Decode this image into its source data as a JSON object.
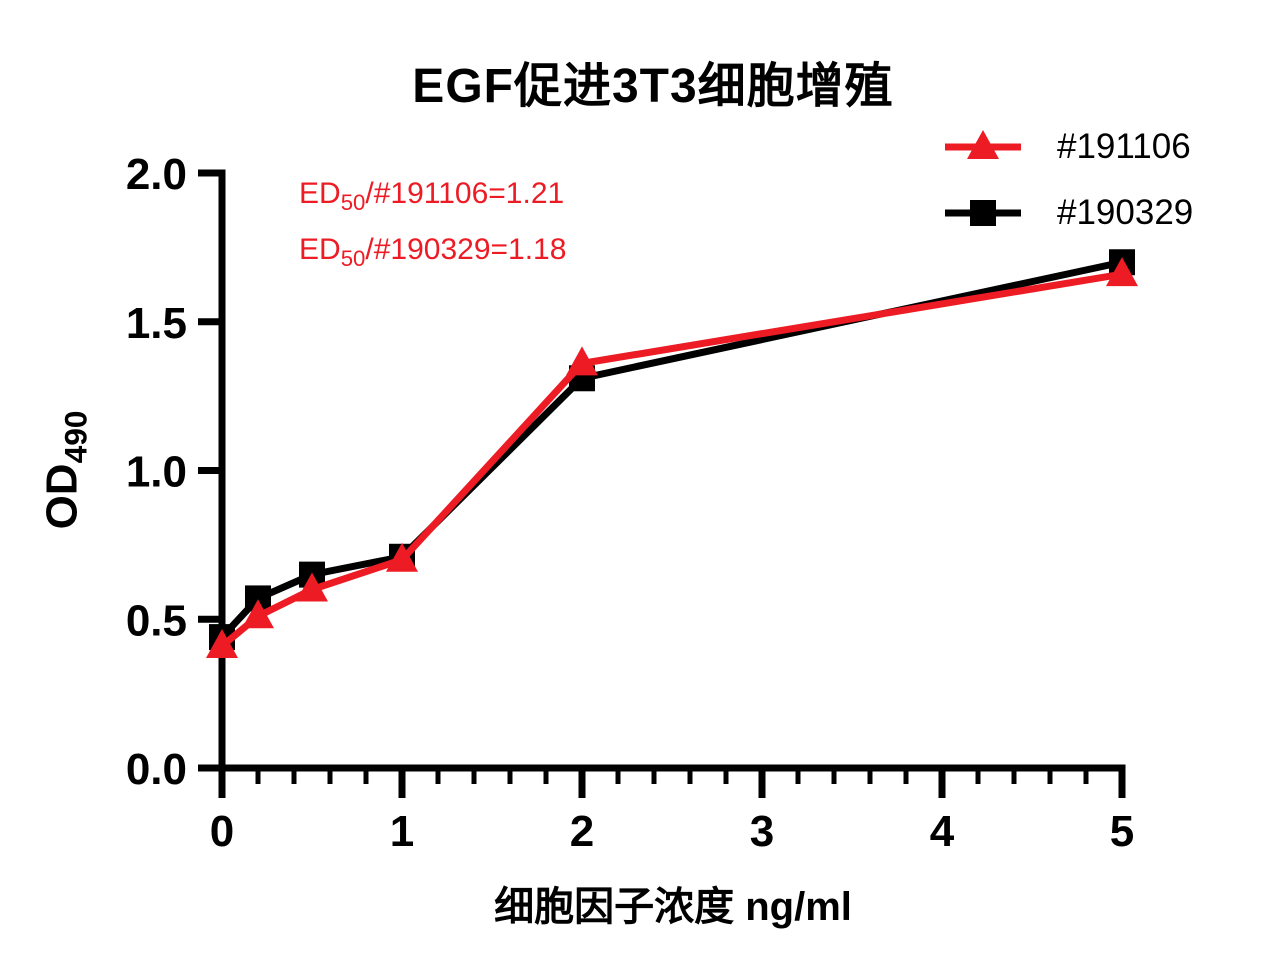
{
  "page": {
    "background": "#ffffff",
    "text_color": "#000000"
  },
  "chart_data": {
    "type": "line",
    "title": "EGF促进3T3细胞增殖",
    "xlabel": "细胞因子浓度 ng/ml",
    "ylabel": {
      "prefix": "OD",
      "sub": "490"
    },
    "xlim": [
      0,
      5
    ],
    "ylim": [
      0,
      2
    ],
    "x_ticks": [
      0,
      1,
      2,
      3,
      4,
      5
    ],
    "x_tick_labels": [
      "0",
      "1",
      "2",
      "3",
      "4",
      "5"
    ],
    "x_minor_step": 0.2,
    "y_ticks": [
      0,
      0.5,
      1,
      1.5,
      2
    ],
    "y_tick_labels": [
      "0.0",
      "0.5",
      "1.0",
      "1.5",
      "2.0"
    ],
    "grid": false,
    "legend_position": "top-right",
    "axis_color": "#000000",
    "x": [
      0,
      0.2,
      0.5,
      1,
      2,
      5
    ],
    "series": [
      {
        "name": "#191106",
        "color": "#ed1c24",
        "marker": "triangle",
        "values": [
          0.41,
          0.51,
          0.6,
          0.7,
          1.36,
          1.66
        ]
      },
      {
        "name": "#190329",
        "color": "#000000",
        "marker": "square",
        "values": [
          0.44,
          0.57,
          0.65,
          0.71,
          1.31,
          1.7
        ]
      }
    ],
    "annotations": [
      {
        "prefix": "ED",
        "sub": "50",
        "rest": "/#191106=1.21",
        "color": "#ed1c24"
      },
      {
        "prefix": "ED",
        "sub": "50",
        "rest": "/#190329=1.18",
        "color": "#ed1c24"
      }
    ]
  }
}
